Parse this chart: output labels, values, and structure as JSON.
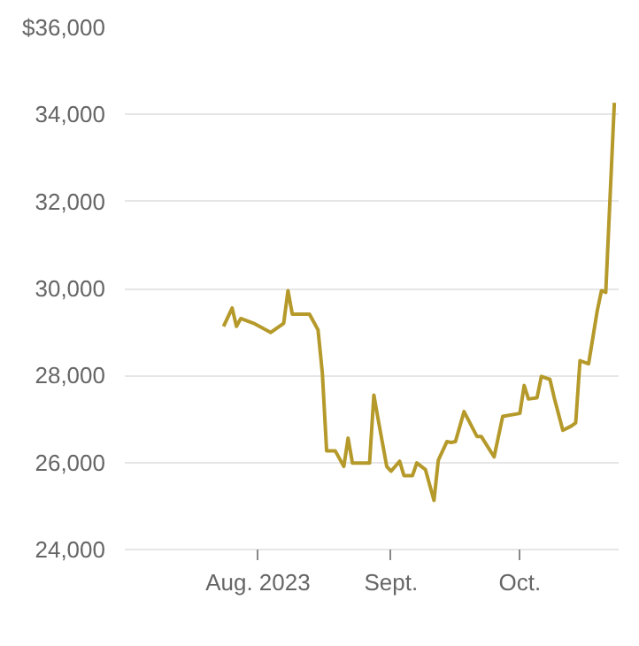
{
  "chart_data": {
    "type": "line",
    "x": [
      "2023-07-24",
      "2023-07-26",
      "2023-07-27",
      "2023-07-28",
      "2023-07-31",
      "2023-08-04",
      "2023-08-07",
      "2023-08-08",
      "2023-08-09",
      "2023-08-13",
      "2023-08-15",
      "2023-08-16",
      "2023-08-17",
      "2023-08-19",
      "2023-08-21",
      "2023-08-22",
      "2023-08-23",
      "2023-08-27",
      "2023-08-28",
      "2023-08-29",
      "2023-08-31",
      "2023-09-01",
      "2023-09-03",
      "2023-09-04",
      "2023-09-06",
      "2023-09-07",
      "2023-09-09",
      "2023-09-11",
      "2023-09-12",
      "2023-09-14",
      "2023-09-15",
      "2023-09-16",
      "2023-09-18",
      "2023-09-21",
      "2023-09-22",
      "2023-09-25",
      "2023-09-27",
      "2023-10-01",
      "2023-10-02",
      "2023-10-03",
      "2023-10-05",
      "2023-10-06",
      "2023-10-08",
      "2023-10-09",
      "2023-10-11",
      "2023-10-13",
      "2023-10-14",
      "2023-10-15",
      "2023-10-17",
      "2023-10-19",
      "2023-10-20",
      "2023-10-21",
      "2023-10-23"
    ],
    "series": [
      {
        "color": "#b59a2b",
        "values": [
          29130,
          29550,
          29130,
          29310,
          29200,
          28990,
          29200,
          29950,
          29410,
          29410,
          29050,
          28060,
          26270,
          26270,
          25910,
          26560,
          25990,
          25990,
          27550,
          26990,
          25910,
          25800,
          26030,
          25700,
          25700,
          25990,
          25840,
          25130,
          26050,
          26480,
          26460,
          26480,
          27170,
          26600,
          26600,
          26130,
          27060,
          27130,
          27770,
          27460,
          27490,
          27980,
          27910,
          27490,
          26740,
          26840,
          26910,
          28340,
          28270,
          29480,
          29950,
          29910,
          34270
        ]
      }
    ],
    "xlim": [
      "2023-07-01",
      "2023-10-24"
    ],
    "xticks": [
      {
        "value": "2023-08-01",
        "label": "Aug. 2023"
      },
      {
        "value": "2023-09-01",
        "label": "Sept."
      },
      {
        "value": "2023-10-01",
        "label": "Oct."
      }
    ],
    "ylim": [
      24000,
      36000
    ],
    "yticks": [
      {
        "value": 24000,
        "label": "24,000"
      },
      {
        "value": 26000,
        "label": "26,000"
      },
      {
        "value": 28000,
        "label": "28,000"
      },
      {
        "value": 30000,
        "label": "30,000"
      },
      {
        "value": 32000,
        "label": "32,000"
      },
      {
        "value": 34000,
        "label": "34,000"
      },
      {
        "value": 36000,
        "label": "$36,000"
      }
    ],
    "grid": "y",
    "marker": "none",
    "line_style": "solid"
  }
}
